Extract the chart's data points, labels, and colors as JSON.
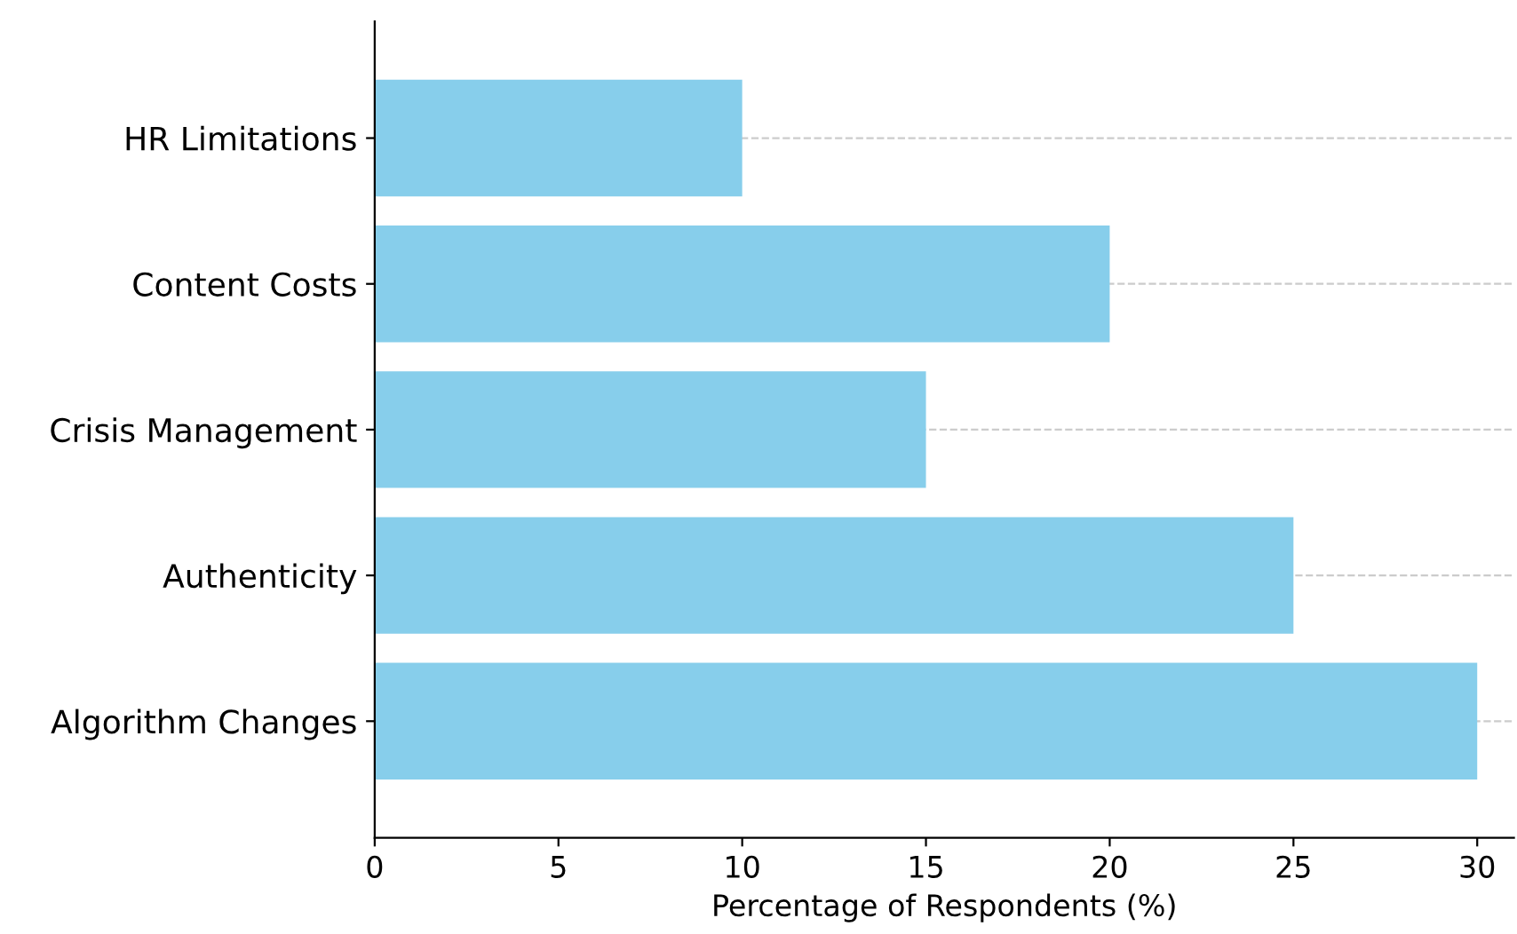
{
  "chart_data": {
    "type": "bar",
    "orientation": "horizontal",
    "xlabel": "Percentage of Respondents (%)",
    "categories": [
      "HR Limitations",
      "Content Costs",
      "Crisis Management",
      "Authenticity",
      "Algorithm Changes"
    ],
    "values": [
      10,
      20,
      15,
      25,
      30
    ],
    "color": "#87ceeb",
    "xlim": [
      0,
      31
    ],
    "xticks": [
      0,
      5,
      10,
      15,
      20,
      25,
      30
    ],
    "grid": "y",
    "line_style": "dashed"
  }
}
